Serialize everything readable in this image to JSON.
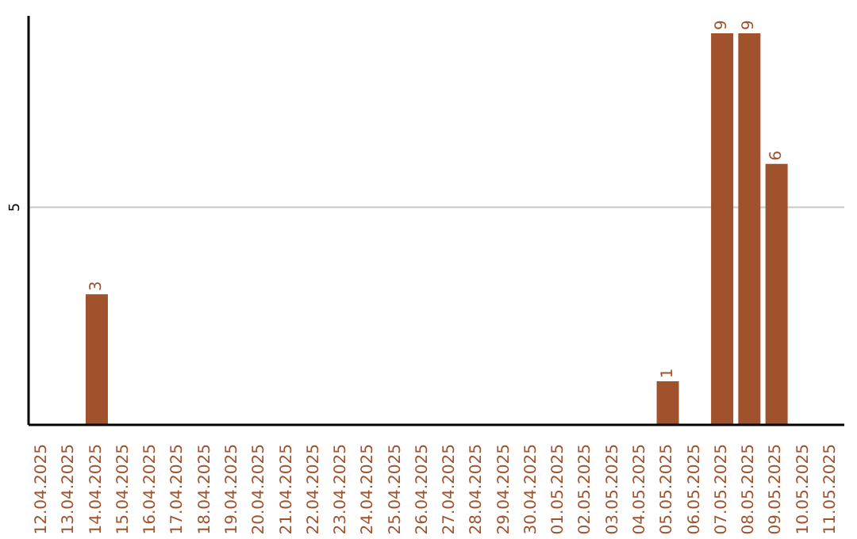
{
  "chart_data": {
    "type": "bar",
    "categories": [
      "12.04.2025",
      "13.04.2025",
      "14.04.2025",
      "15.04.2025",
      "16.04.2025",
      "17.04.2025",
      "18.04.2025",
      "19.04.2025",
      "20.04.2025",
      "21.04.2025",
      "22.04.2025",
      "23.04.2025",
      "24.04.2025",
      "25.04.2025",
      "26.04.2025",
      "27.04.2025",
      "28.04.2025",
      "29.04.2025",
      "30.04.2025",
      "01.05.2025",
      "02.05.2025",
      "03.05.2025",
      "04.05.2025",
      "05.05.2025",
      "06.05.2025",
      "07.05.2025",
      "08.05.2025",
      "09.05.2025",
      "10.05.2025",
      "11.05.2025"
    ],
    "values": [
      0,
      0,
      3,
      0,
      0,
      0,
      0,
      0,
      0,
      0,
      0,
      0,
      0,
      0,
      0,
      0,
      0,
      0,
      0,
      0,
      0,
      0,
      0,
      1,
      0,
      9,
      9,
      6,
      0,
      0
    ],
    "value_labels": [
      null,
      null,
      "3",
      null,
      null,
      null,
      null,
      null,
      null,
      null,
      null,
      null,
      null,
      null,
      null,
      null,
      null,
      null,
      null,
      null,
      null,
      null,
      null,
      "1",
      null,
      "9",
      "9",
      "6",
      null,
      null
    ],
    "color": "#a0522d",
    "ylim": [
      0,
      9.4
    ],
    "yticks": [
      5
    ],
    "grid": "y"
  }
}
